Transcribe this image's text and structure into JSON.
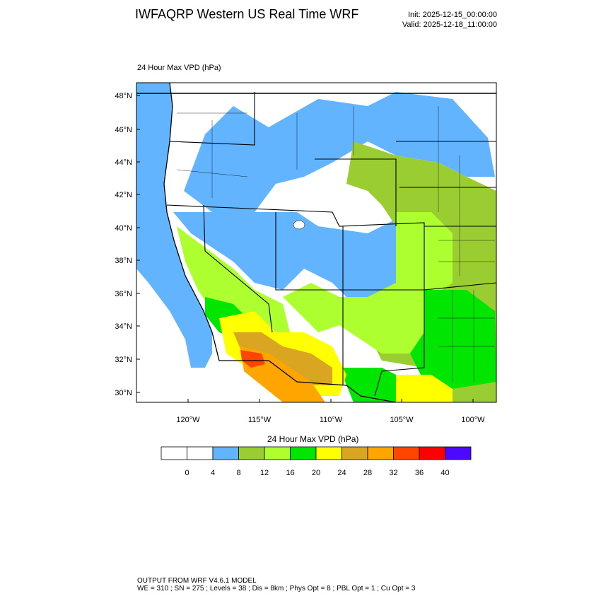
{
  "header": {
    "title": "IWFAQRP Western US Real Time WRF",
    "init": "Init: 2025-12-15_00:00:00",
    "valid": "Valid: 2025-12-18_11:00:00"
  },
  "map": {
    "field_label": "24 Hour Max VPD   (hPa)",
    "lat_labels": [
      "48°N",
      "46°N",
      "44°N",
      "42°N",
      "40°N",
      "38°N",
      "36°N",
      "34°N",
      "32°N",
      "30°N"
    ],
    "lon_labels": [
      "120°W",
      "115°W",
      "110°W",
      "105°W",
      "100°W"
    ]
  },
  "colorbar": {
    "title": "24 Hour Max VPD  (hPa)",
    "colors": [
      "#ffffff",
      "#ffffff",
      "#63b4ff",
      "#9acd32",
      "#adff2f",
      "#00e600",
      "#ffff00",
      "#daa520",
      "#ffa500",
      "#ff4500",
      "#ff0000",
      "#4b0aff"
    ],
    "labels": [
      "0",
      "4",
      "8",
      "12",
      "16",
      "20",
      "24",
      "28",
      "32",
      "36",
      "40"
    ]
  },
  "footer": {
    "line1": "OUTPUT FROM WRF V4.6.1 MODEL",
    "line2": "WE = 310 ; SN = 275 ; Levels = 38 ; Dis = 8km ; Phys Opt = 8 ; PBL Opt = 1 ; Cu Opt = 3"
  }
}
